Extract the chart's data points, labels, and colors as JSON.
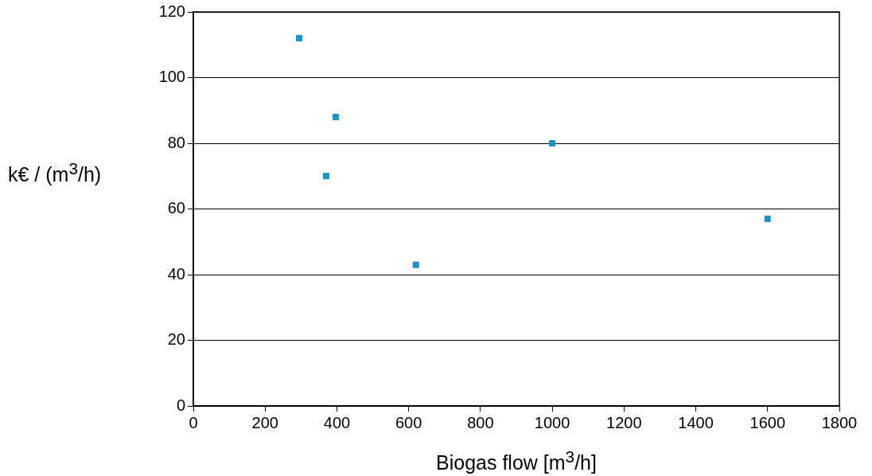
{
  "chart_data": {
    "type": "scatter",
    "xlabel": "Biogas flow [m$^{3}$/h]",
    "ylabel": "k€ / (m$^{3}$/h)",
    "x": [
      295,
      397,
      370,
      620,
      1000,
      1600
    ],
    "values": [
      112,
      88,
      70,
      43,
      80,
      57
    ],
    "color": "#1a93c8",
    "marker": "square",
    "xlim": [
      0,
      1800
    ],
    "xticks": [
      0,
      200,
      400,
      600,
      800,
      1000,
      1200,
      1400,
      1600,
      1800
    ],
    "ylim": [
      0,
      120
    ],
    "yticks": [
      0,
      20,
      40,
      60,
      80,
      100,
      120
    ],
    "grid": "y"
  }
}
